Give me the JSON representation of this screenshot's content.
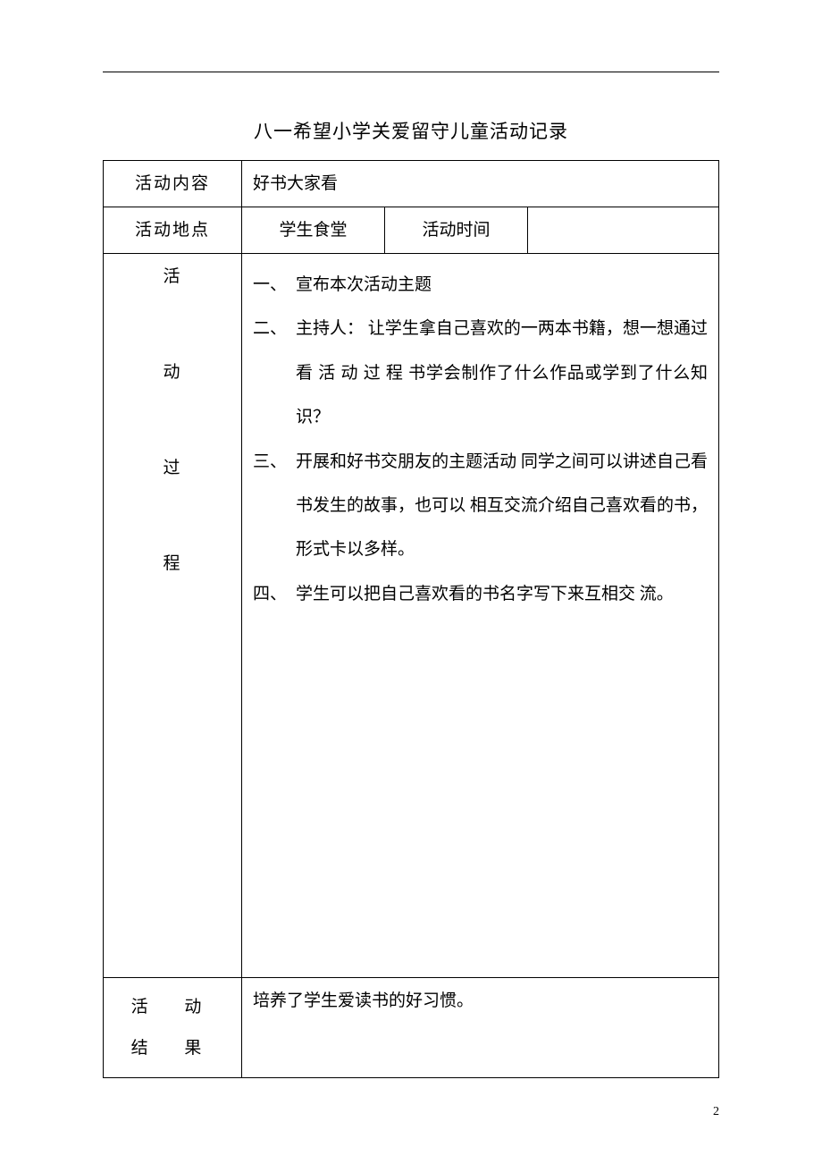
{
  "title": "八一希望小学关爱留守儿童活动记录",
  "rows": {
    "content_label": "活动内容",
    "content_value": "好书大家看",
    "location_label": "活动地点",
    "location_value": "学生食堂",
    "time_label": "活动时间",
    "time_value": ""
  },
  "process": {
    "label_chars": [
      "活",
      "动",
      "过",
      "程"
    ],
    "items": [
      {
        "marker": "一、",
        "text": "宣布本次活动主题"
      },
      {
        "marker": "二、",
        "text": "主持人：  让学生拿自己喜欢的一两本书籍，想一想通过看 活 动 过 程 书学会制作了什么作品或学到了什么知识？"
      },
      {
        "marker": "三、",
        "text": "开展和好书交朋友的主题活动  同学之间可以讲述自己看书发生的故事，也可以 相互交流介绍自己喜欢看的书，形式卡以多样。"
      },
      {
        "marker": "四、",
        "text": "学生可以把自己喜欢看的书名字写下来互相交 流。"
      }
    ]
  },
  "result": {
    "label_line1": "活 动",
    "label_line2": "结 果",
    "text": "培养了学生爱读书的好习惯。"
  },
  "page_number": "2",
  "colors": {
    "text": "#000000",
    "background": "#ffffff",
    "border": "#000000"
  },
  "typography": {
    "body_font": "SimSun",
    "title_fontsize": 21,
    "body_fontsize": 19,
    "page_num_fontsize": 14
  }
}
